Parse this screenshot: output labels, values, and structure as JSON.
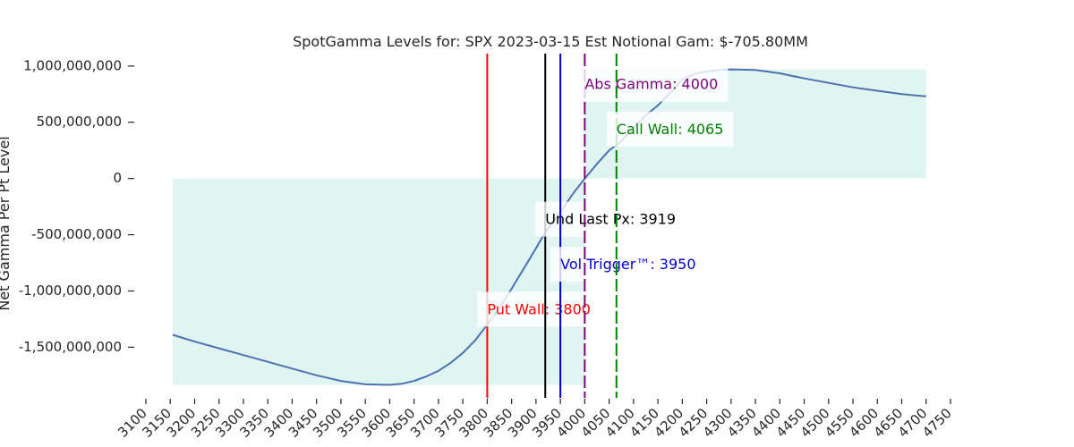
{
  "chart_data": {
    "type": "line",
    "title": "SpotGamma Levels for: SPX  2023-03-15 Est Notional Gam: $-705.80MM",
    "xlabel": "",
    "ylabel": "Net Gamma Per Pt Level",
    "xlim": [
      3100,
      4750
    ],
    "ylim": [
      -1950000000,
      1110000000
    ],
    "x_ticks": [
      3100,
      3150,
      3200,
      3250,
      3300,
      3350,
      3400,
      3450,
      3500,
      3550,
      3600,
      3650,
      3700,
      3750,
      3800,
      3850,
      3900,
      3950,
      4000,
      4050,
      4100,
      4150,
      4200,
      4250,
      4300,
      4350,
      4400,
      4450,
      4500,
      4550,
      4600,
      4650,
      4700,
      4750
    ],
    "y_ticks": [
      1000000000,
      500000000,
      0,
      -500000000,
      -1000000000,
      -1500000000
    ],
    "y_tick_labels": [
      "1,000,000,000",
      "500,000,000",
      "0",
      "-500,000,000",
      "-1,000,000,000",
      "-1,500,000,000"
    ],
    "fill_color": "#e0f5f2",
    "line_color": "#4c72b0",
    "series": [
      {
        "name": "Net Gamma",
        "x": [
          3155,
          3200,
          3250,
          3300,
          3350,
          3400,
          3450,
          3500,
          3550,
          3600,
          3625,
          3650,
          3675,
          3700,
          3725,
          3750,
          3775,
          3800,
          3825,
          3850,
          3875,
          3900,
          3919,
          3950,
          3975,
          4000,
          4025,
          4050,
          4075,
          4100,
          4125,
          4150,
          4175,
          4200,
          4225,
          4250,
          4275,
          4300,
          4350,
          4400,
          4450,
          4500,
          4550,
          4600,
          4650,
          4700
        ],
        "values": [
          -1390000000,
          -1450000000,
          -1510000000,
          -1570000000,
          -1630000000,
          -1690000000,
          -1750000000,
          -1800000000,
          -1830000000,
          -1835000000,
          -1825000000,
          -1800000000,
          -1760000000,
          -1710000000,
          -1640000000,
          -1550000000,
          -1440000000,
          -1300000000,
          -1150000000,
          -980000000,
          -800000000,
          -620000000,
          -480000000,
          -300000000,
          -140000000,
          0,
          130000000,
          250000000,
          330000000,
          450000000,
          560000000,
          650000000,
          760000000,
          880000000,
          930000000,
          950000000,
          965000000,
          970000000,
          965000000,
          935000000,
          890000000,
          850000000,
          810000000,
          780000000,
          750000000,
          730000000
        ]
      }
    ],
    "levels": [
      {
        "name": "put-wall",
        "label": "Put Wall: 3800",
        "x": 3800,
        "color": "#ff0000",
        "style": "solid",
        "label_y": -1170000000
      },
      {
        "name": "und-last-px",
        "label": "Und Last Px: 3919",
        "x": 3919,
        "color": "#000000",
        "style": "solid",
        "label_y": -370000000
      },
      {
        "name": "vol-trigger",
        "label": "Vol Trigger™: 3950",
        "x": 3950,
        "color": "#0000cc",
        "style": "solid",
        "label_y": -770000000
      },
      {
        "name": "abs-gamma",
        "label": "Abs Gamma: 4000",
        "x": 4000,
        "color": "#800080",
        "style": "dashed",
        "label_y": 830000000
      },
      {
        "name": "call-wall",
        "label": "Call Wall: 4065",
        "x": 4065,
        "color": "#008000",
        "style": "dashed",
        "label_y": 430000000
      }
    ]
  }
}
